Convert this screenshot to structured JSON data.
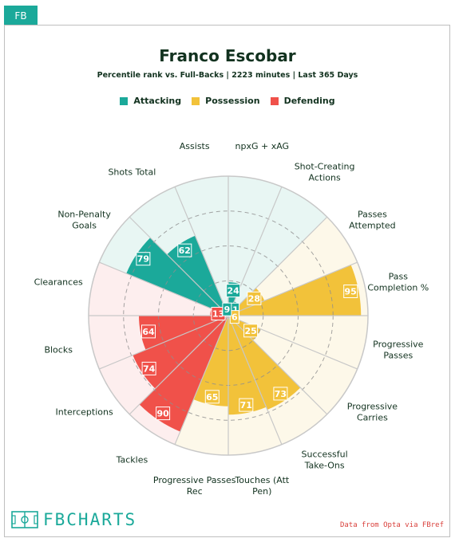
{
  "tab_label": "FB",
  "chart_data": {
    "type": "polar-bar",
    "title": "Franco Escobar",
    "subtitle": "Percentile rank vs. Full-Backs | 2223 minutes | Last 365 Days",
    "rmax": 100,
    "groups": [
      {
        "name": "Attacking",
        "color": "#1ba99a",
        "bg": "#e8f6f3"
      },
      {
        "name": "Possession",
        "color": "#f2c23a",
        "bg": "#fdf8e9"
      },
      {
        "name": "Defending",
        "color": "#f0514a",
        "bg": "#fdeeee"
      }
    ],
    "legend_position": "top",
    "metrics": [
      {
        "label": "npxG + xAG",
        "value": 24,
        "group": "Attacking"
      },
      {
        "label": "Shot-Creating Actions",
        "value": 11,
        "group": "Attacking"
      },
      {
        "label": "Passes Attempted",
        "value": 28,
        "group": "Possession"
      },
      {
        "label": "Pass Completion %",
        "value": 95,
        "group": "Possession"
      },
      {
        "label": "Progressive Passes",
        "value": 6,
        "group": "Possession"
      },
      {
        "label": "Progressive Carries",
        "value": 25,
        "group": "Possession"
      },
      {
        "label": "Successful Take-Ons",
        "value": 73,
        "group": "Possession"
      },
      {
        "label": "Touches (Att Pen)",
        "value": 71,
        "group": "Possession"
      },
      {
        "label": "Progressive Passes Rec",
        "value": 65,
        "group": "Possession"
      },
      {
        "label": "Tackles",
        "value": 90,
        "group": "Defending"
      },
      {
        "label": "Interceptions",
        "value": 74,
        "group": "Defending"
      },
      {
        "label": "Blocks",
        "value": 64,
        "group": "Defending"
      },
      {
        "label": "Clearances",
        "value": 13,
        "group": "Defending"
      },
      {
        "label": "Non-Penalty Goals",
        "value": 79,
        "group": "Attacking"
      },
      {
        "label": "Shots Total",
        "value": 62,
        "group": "Attacking"
      },
      {
        "label": "Assists",
        "value": 9,
        "group": "Attacking"
      }
    ]
  },
  "footer": {
    "logo_text": "FBCHARTS",
    "credit": "Data from Opta via FBref"
  }
}
